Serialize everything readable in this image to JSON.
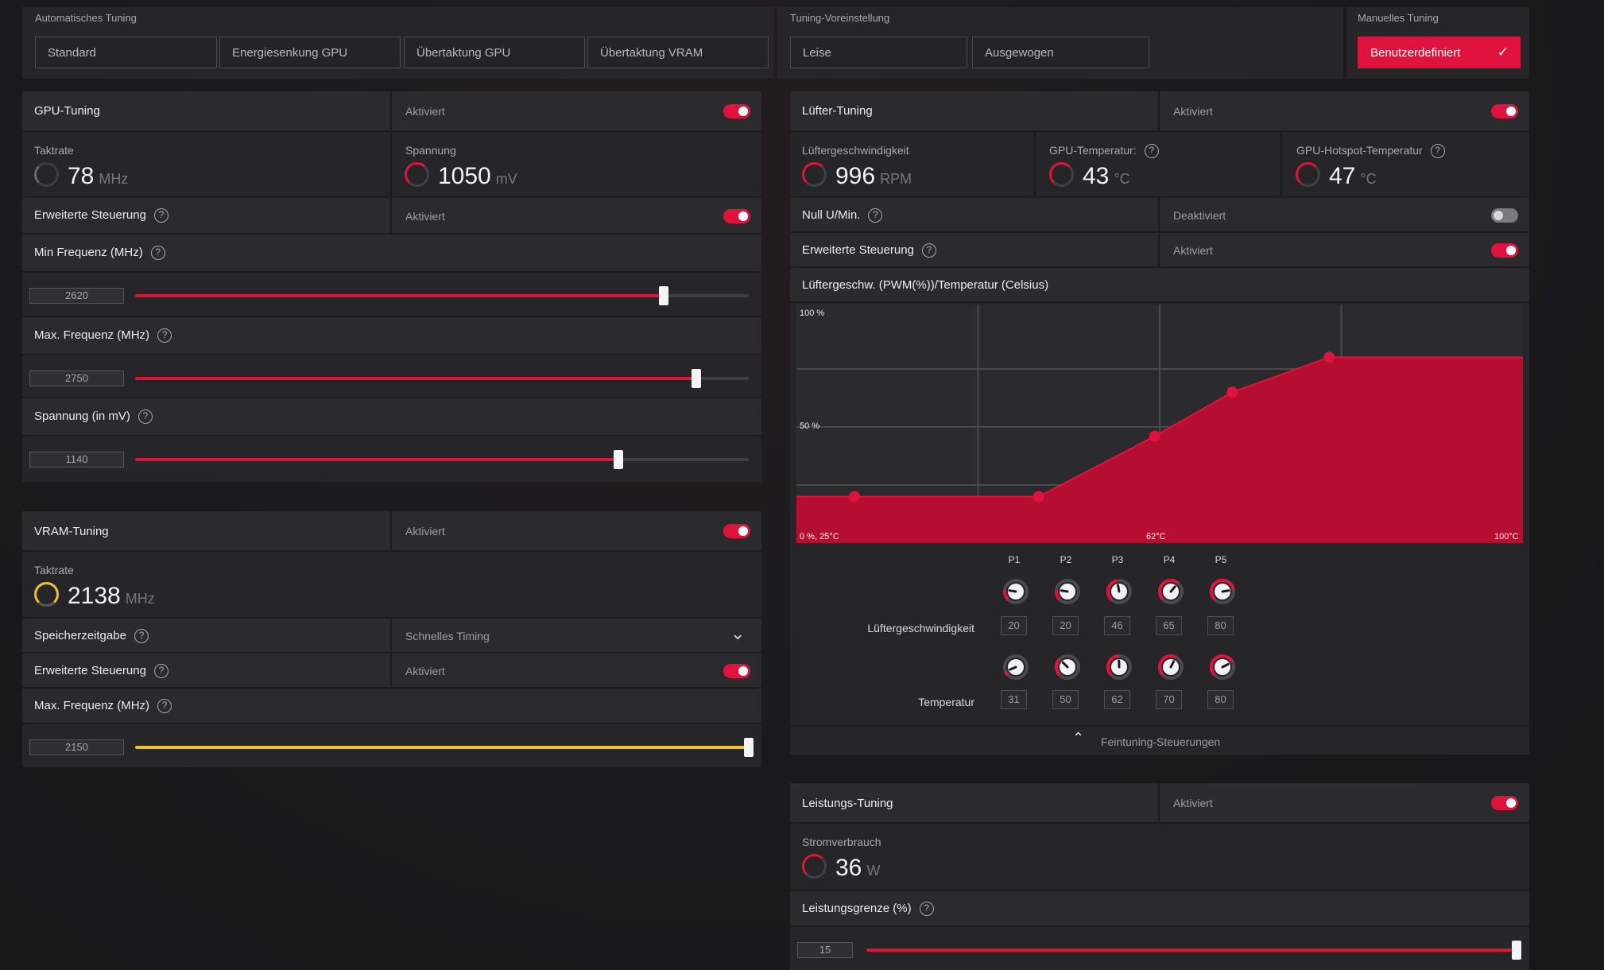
{
  "auto_tuning": {
    "label": "Automatisches Tuning",
    "buttons": [
      "Standard",
      "Energiesenkung GPU",
      "Übertaktung GPU",
      "Übertaktung VRAM"
    ]
  },
  "tuning_preset": {
    "label": "Tuning-Voreinstellung",
    "buttons": [
      "Leise",
      "Ausgewogen"
    ]
  },
  "manual_tuning": {
    "label": "Manuelles Tuning",
    "button": "Benutzerdefiniert",
    "check_icon": "✓"
  },
  "gpu_tuning": {
    "title": "GPU-Tuning",
    "status": "Aktiviert",
    "enabled": true,
    "clock": {
      "label": "Taktrate",
      "value": "78",
      "unit": "MHz"
    },
    "voltage": {
      "label": "Spannung",
      "value": "1050",
      "unit": "mV"
    },
    "advanced": {
      "label": "Erweiterte Steuerung",
      "status": "Aktiviert",
      "enabled": true
    },
    "min_freq": {
      "label": "Min Frequenz (MHz)",
      "value": "2620",
      "fraction": 0.861
    },
    "max_freq": {
      "label": "Max. Frequenz (MHz)",
      "value": "2750",
      "fraction": 0.914
    },
    "volt_slider": {
      "label": "Spannung (in mV)",
      "value": "1140",
      "fraction": 0.788
    }
  },
  "vram_tuning": {
    "title": "VRAM-Tuning",
    "status": "Aktiviert",
    "enabled": true,
    "clock": {
      "label": "Taktrate",
      "value": "2138",
      "unit": "MHz"
    },
    "timing": {
      "label": "Speicherzeitgabe",
      "value": "Schnelles Timing"
    },
    "advanced": {
      "label": "Erweiterte Steuerung",
      "status": "Aktiviert",
      "enabled": true
    },
    "max_freq": {
      "label": "Max. Frequenz (MHz)",
      "value": "2150",
      "fraction": 1.0
    }
  },
  "fan_tuning": {
    "title": "Lüfter-Tuning",
    "status": "Aktiviert",
    "enabled": true,
    "fan_speed": {
      "label": "Lüftergeschwindigkeit",
      "value": "996",
      "unit": "RPM"
    },
    "gpu_temp": {
      "label": "GPU-Temperatur:",
      "value": "43",
      "unit": "°C"
    },
    "hotspot_temp": {
      "label": "GPU-Hotspot-Temperatur",
      "value": "47",
      "unit": "°C"
    },
    "zero_rpm": {
      "label": "Null U/Min.",
      "status": "Deaktiviert",
      "enabled": false
    },
    "advanced": {
      "label": "Erweiterte Steuerung",
      "status": "Aktiviert",
      "enabled": true
    },
    "curve_title": "Lüftergeschw. (PWM(%))/Temperatur (Celsius)",
    "curve_labels": {
      "y_top": "100 %",
      "y_mid": "50 %",
      "origin": "0 %, 25°C",
      "x_mid": "62°C",
      "x_max": "100°C"
    },
    "points": [
      "P1",
      "P2",
      "P3",
      "P4",
      "P5"
    ],
    "speed_label": "Lüftergeschwindigkeit",
    "temp_label": "Temperatur",
    "speeds": [
      "20",
      "20",
      "46",
      "65",
      "80"
    ],
    "temps": [
      "31",
      "50",
      "62",
      "70",
      "80"
    ],
    "fine_tuning": "Feintuning-Steuerungen"
  },
  "chart_data": {
    "type": "area",
    "x": [
      25,
      31,
      50,
      62,
      70,
      80,
      100
    ],
    "y": [
      20,
      20,
      20,
      46,
      65,
      80,
      80
    ],
    "xlim": [
      25,
      100
    ],
    "ylim": [
      0,
      100
    ],
    "points": [
      {
        "name": "P1",
        "x": 31,
        "y": 20
      },
      {
        "name": "P2",
        "x": 50,
        "y": 20
      },
      {
        "name": "P3",
        "x": 62,
        "y": 46
      },
      {
        "name": "P4",
        "x": 70,
        "y": 65
      },
      {
        "name": "P5",
        "x": 80,
        "y": 80
      }
    ],
    "color": "#e0133e",
    "grid": true
  },
  "power_tuning": {
    "title": "Leistungs-Tuning",
    "status": "Aktiviert",
    "enabled": true,
    "usage": {
      "label": "Stromverbrauch",
      "value": "36",
      "unit": "W"
    },
    "limit": {
      "label": "Leistungsgrenze (%)",
      "value": "15",
      "fraction": 1.0
    }
  },
  "icons": {
    "help": "?",
    "chevron_down": "⌄",
    "chevron_up": "⌃"
  },
  "colors": {
    "accent": "#e0133e",
    "vram_accent": "#f2c12e"
  }
}
